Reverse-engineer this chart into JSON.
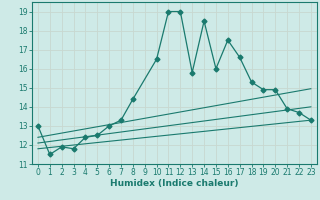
{
  "title": "",
  "xlabel": "Humidex (Indice chaleur)",
  "ylabel": "",
  "bg_color": "#ceeae7",
  "line_color": "#1a7a6e",
  "grid_color": "#b8d8d5",
  "xlim": [
    -0.5,
    23.5
  ],
  "ylim": [
    11,
    19.5
  ],
  "x_ticks": [
    0,
    1,
    2,
    3,
    4,
    5,
    6,
    7,
    8,
    9,
    10,
    11,
    12,
    13,
    14,
    15,
    16,
    17,
    18,
    19,
    20,
    21,
    22,
    23
  ],
  "y_ticks": [
    11,
    12,
    13,
    14,
    15,
    16,
    17,
    18,
    19
  ],
  "series1_x": [
    0,
    1,
    2,
    3,
    4,
    5,
    6,
    7,
    8,
    10,
    11,
    12,
    13,
    14,
    15,
    16,
    17,
    18,
    19,
    20,
    21,
    22,
    23
  ],
  "series1_y": [
    13.0,
    11.5,
    11.9,
    11.8,
    12.4,
    12.5,
    13.0,
    13.3,
    14.4,
    16.5,
    19.0,
    19.0,
    15.8,
    18.5,
    16.0,
    17.5,
    16.6,
    15.3,
    14.9,
    14.9,
    13.9,
    13.7,
    13.3
  ],
  "series2_x": [
    0,
    23
  ],
  "series2_y": [
    11.8,
    13.3
  ],
  "series3_x": [
    0,
    23
  ],
  "series3_y": [
    12.1,
    14.0
  ],
  "series4_x": [
    0,
    23
  ],
  "series4_y": [
    12.4,
    14.95
  ]
}
